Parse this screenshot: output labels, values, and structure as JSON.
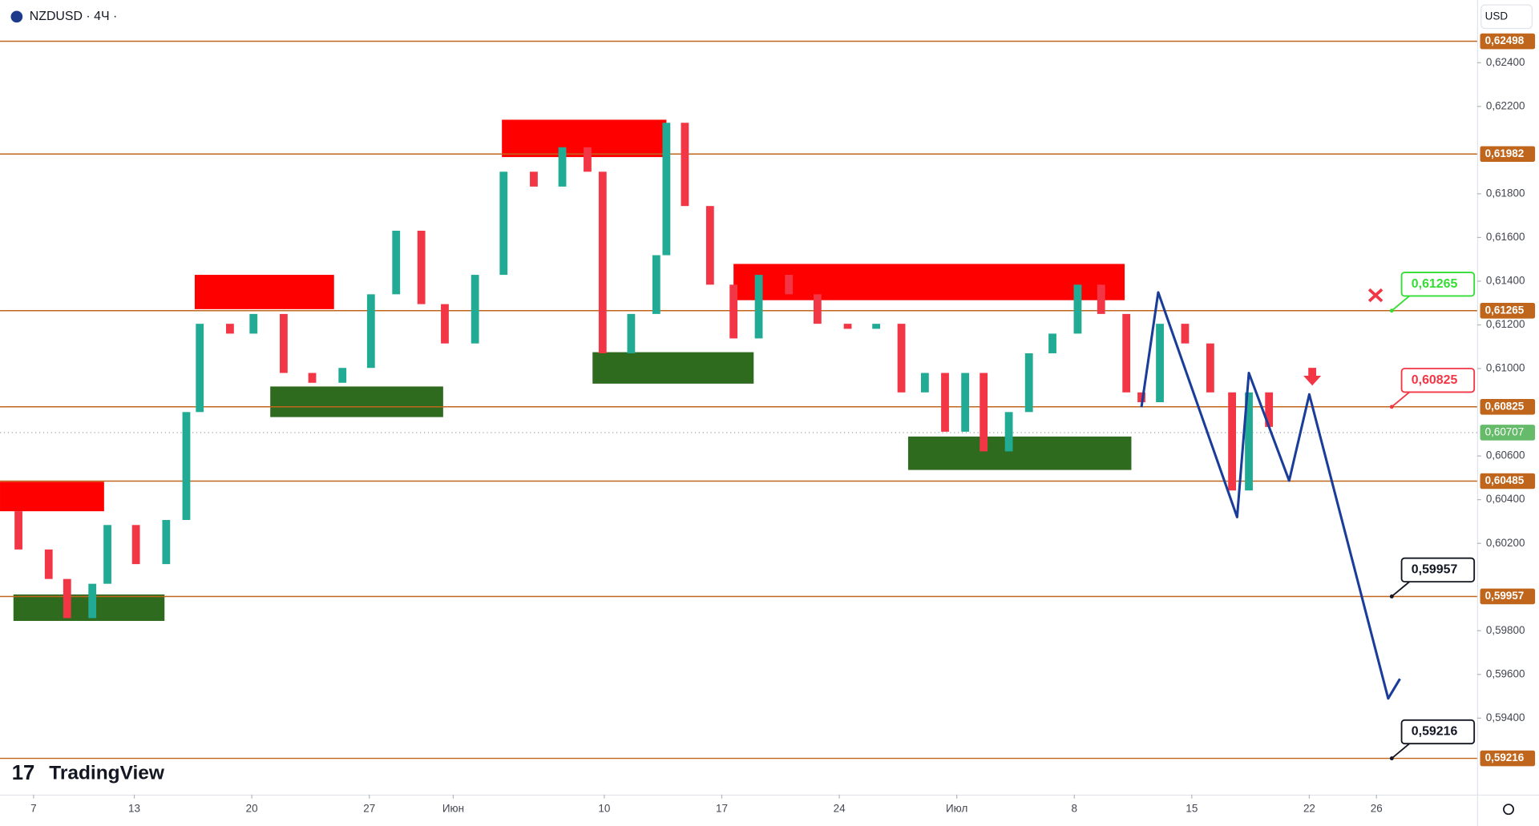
{
  "header": {
    "symbol": "NZDUSD · 4Ч ·",
    "currency": "USD",
    "logo": "TradingView"
  },
  "chart_data": {
    "type": "candlestick",
    "xlim": [
      -2,
      86
    ],
    "ylim": [
      0.5905,
      0.62687
    ],
    "xticks": [
      {
        "value": 0,
        "label": "7"
      },
      {
        "value": 6,
        "label": "13"
      },
      {
        "value": 13,
        "label": "20"
      },
      {
        "value": 20,
        "label": "27"
      },
      {
        "value": 25,
        "label": "Июн"
      },
      {
        "value": 34,
        "label": "10"
      },
      {
        "value": 41,
        "label": "17"
      },
      {
        "value": 48,
        "label": "24"
      },
      {
        "value": 55,
        "label": "Июл"
      },
      {
        "value": 62,
        "label": "8"
      },
      {
        "value": 69,
        "label": "15"
      },
      {
        "value": 76,
        "label": "22"
      },
      {
        "value": 80,
        "label": "26"
      }
    ],
    "yticks": [
      {
        "value": 0.624,
        "label": "0,62400"
      },
      {
        "value": 0.622,
        "label": "0,62200"
      },
      {
        "value": 0.618,
        "label": "0,61800"
      },
      {
        "value": 0.616,
        "label": "0,61600"
      },
      {
        "value": 0.614,
        "label": "0,61400"
      },
      {
        "value": 0.612,
        "label": "0,61200"
      },
      {
        "value": 0.61,
        "label": "0,61000"
      },
      {
        "value": 0.606,
        "label": "0,60600"
      },
      {
        "value": 0.604,
        "label": "0,60400"
      },
      {
        "value": 0.602,
        "label": "0,60200"
      },
      {
        "value": 0.598,
        "label": "0,59800"
      },
      {
        "value": 0.596,
        "label": "0,59600"
      },
      {
        "value": 0.594,
        "label": "0,59400"
      }
    ],
    "grid": false,
    "up_color": "#22ab94",
    "down_color": "#f23645",
    "x": [
      -0.9,
      0.9,
      2.0,
      3.5,
      4.4,
      6.1,
      7.9,
      9.1,
      9.9,
      11.7,
      13.1,
      14.9,
      16.6,
      18.4,
      20.1,
      21.6,
      23.1,
      24.5,
      26.3,
      28.0,
      29.8,
      31.5,
      33.0,
      33.9,
      35.6,
      37.1,
      37.7,
      38.8,
      40.3,
      41.7,
      43.2,
      45.0,
      46.7,
      48.5,
      50.2,
      51.7,
      53.1,
      54.3,
      55.5,
      56.6,
      58.1,
      59.3,
      60.7,
      62.2,
      63.6,
      65.1,
      66.0,
      67.1,
      68.6,
      70.1,
      71.4,
      72.4,
      73.6
    ],
    "open": [
      0.60347,
      0.60172,
      0.60037,
      0.59858,
      0.60015,
      0.60284,
      0.60105,
      0.60307,
      0.60801,
      0.61205,
      0.6116,
      0.6125,
      0.6098,
      0.60935,
      0.61003,
      0.6134,
      0.61631,
      0.61295,
      0.61115,
      0.61429,
      0.61901,
      0.61833,
      0.62013,
      0.61901,
      0.6107,
      0.6125,
      0.61519,
      0.62125,
      0.61744,
      0.61384,
      0.61138,
      0.61429,
      0.6134,
      0.61205,
      0.61182,
      0.61205,
      0.60891,
      0.6098,
      0.60711,
      0.6098,
      0.60621,
      0.60801,
      0.6107,
      0.6116,
      0.61384,
      0.6125,
      0.60891,
      0.60846,
      0.61205,
      0.61115,
      0.60891,
      0.60442,
      0.60891
    ],
    "close": [
      0.60172,
      0.60037,
      0.59858,
      0.60015,
      0.60284,
      0.60105,
      0.60307,
      0.60801,
      0.61205,
      0.6116,
      0.6125,
      0.6098,
      0.60935,
      0.61003,
      0.6134,
      0.61631,
      0.61295,
      0.61115,
      0.61429,
      0.61901,
      0.61833,
      0.62013,
      0.61901,
      0.6107,
      0.6125,
      0.61519,
      0.62125,
      0.61744,
      0.61384,
      0.61138,
      0.61429,
      0.6134,
      0.61205,
      0.61182,
      0.61205,
      0.60891,
      0.6098,
      0.60711,
      0.6098,
      0.60621,
      0.60801,
      0.6107,
      0.6116,
      0.61384,
      0.6125,
      0.60891,
      0.60846,
      0.61205,
      0.61115,
      0.60891,
      0.60442,
      0.60891,
      0.60733
    ],
    "levels": [
      {
        "value": 0.62498,
        "label": "0,62498"
      },
      {
        "value": 0.61982,
        "label": "0,61982"
      },
      {
        "value": 0.61265,
        "label": "0,61265"
      },
      {
        "value": 0.60825,
        "label": "0,60825"
      },
      {
        "value": 0.60485,
        "label": "0,60485"
      },
      {
        "value": 0.59957,
        "label": "0,59957"
      },
      {
        "value": 0.59216,
        "label": "0,59216"
      }
    ],
    "level_color": "#c0661c",
    "current_price": {
      "value": 0.60707,
      "label": "0,60707",
      "color": "#66bb6a"
    },
    "zones": [
      {
        "x": [
          -2,
          4.2
        ],
        "y": [
          0.60347,
          0.60482
        ],
        "color": "#ff0000"
      },
      {
        "x": [
          -1.2,
          7.8
        ],
        "y": [
          0.59845,
          0.59966
        ],
        "color": "#2e6b1f"
      },
      {
        "x": [
          9.6,
          17.9
        ],
        "y": [
          0.61272,
          0.61429
        ],
        "color": "#ff0000"
      },
      {
        "x": [
          14.1,
          24.4
        ],
        "y": [
          0.60778,
          0.60918
        ],
        "color": "#2e6b1f"
      },
      {
        "x": [
          27.9,
          37.7
        ],
        "y": [
          0.61968,
          0.62139
        ],
        "color": "#ff0000"
      },
      {
        "x": [
          33.3,
          42.9
        ],
        "y": [
          0.60931,
          0.61075
        ],
        "color": "#2e6b1f"
      },
      {
        "x": [
          41.7,
          65.0
        ],
        "y": [
          0.61313,
          0.61479
        ],
        "color": "#ff0000"
      },
      {
        "x": [
          52.1,
          65.4
        ],
        "y": [
          0.60536,
          0.60689
        ],
        "color": "#2e6b1f"
      }
    ],
    "projection": {
      "x": [
        66.0,
        67.0,
        71.7,
        72.4,
        74.8,
        76.0,
        80.7,
        81.4
      ],
      "y": [
        0.60823,
        0.61349,
        0.6032,
        0.6098,
        0.60487,
        0.60882,
        0.5949,
        0.5958
      ],
      "color": "#1a3d99"
    },
    "callouts": [
      {
        "value": 0.61265,
        "label": "0,61265",
        "color": "#33dd33"
      },
      {
        "value": 0.60825,
        "label": "0,60825",
        "color": "#f23645"
      },
      {
        "value": 0.59957,
        "label": "0,59957",
        "color": "#131722"
      },
      {
        "value": 0.59216,
        "label": "0,59216",
        "color": "#131722"
      }
    ]
  }
}
